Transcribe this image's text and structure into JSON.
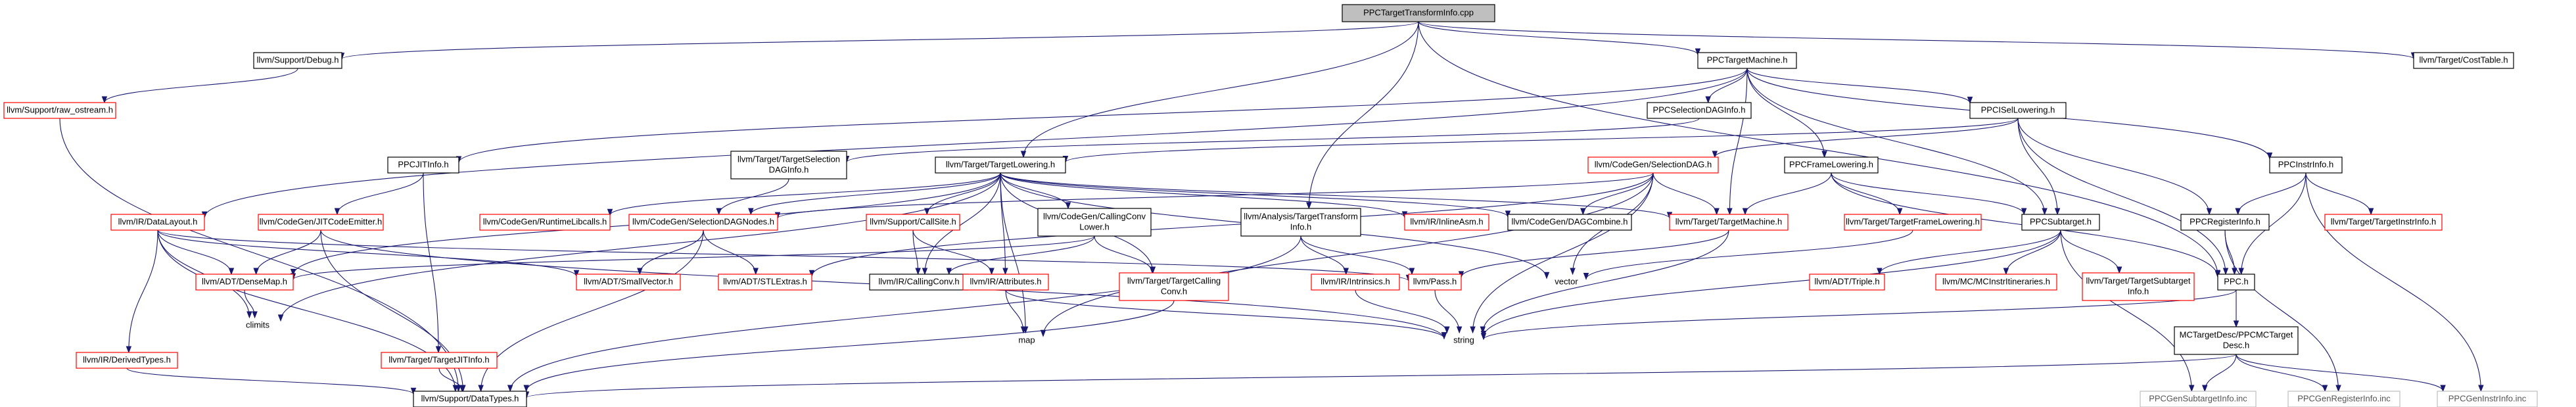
{
  "diagram": {
    "title": "PPCTargetTransformInfo.cpp include dependency graph",
    "colors": {
      "edge": "#191970",
      "missing_border": "#ff0000",
      "root_fill": "#bfbfbf",
      "external_border": "#bfbfbf"
    },
    "nodes": [
      {
        "id": "root",
        "label": [
          "PPCTargetTransformInfo.cpp"
        ],
        "kind": "root"
      },
      {
        "id": "debug",
        "label": [
          "llvm/Support/Debug.h"
        ],
        "kind": "normal"
      },
      {
        "id": "raw_ostream",
        "label": [
          "llvm/Support/raw_ostream.h"
        ],
        "kind": "missing"
      },
      {
        "id": "ppc_target_machine",
        "label": [
          "PPCTargetMachine.h"
        ],
        "kind": "normal"
      },
      {
        "id": "cost_table",
        "label": [
          "llvm/Target/CostTable.h"
        ],
        "kind": "normal"
      },
      {
        "id": "ir_datalayout",
        "label": [
          "llvm/IR/DataLayout.h"
        ],
        "kind": "missing"
      },
      {
        "id": "selection_dag_info",
        "label": [
          "PPCSelectionDAGInfo.h"
        ],
        "kind": "normal"
      },
      {
        "id": "isel_lowering",
        "label": [
          "PPCISelLowering.h"
        ],
        "kind": "normal"
      },
      {
        "id": "instr_info",
        "label": [
          "PPCInstrInfo.h"
        ],
        "kind": "normal"
      },
      {
        "id": "jit_info",
        "label": [
          "PPCJITInfo.h"
        ],
        "kind": "normal"
      },
      {
        "id": "target_selection_dag_info",
        "label": [
          "llvm/Target/TargetSelection",
          "DAGInfo.h"
        ],
        "kind": "normal"
      },
      {
        "id": "target_lowering",
        "label": [
          "llvm/Target/TargetLowering.h"
        ],
        "kind": "normal"
      },
      {
        "id": "codegen_selection_dag",
        "label": [
          "llvm/CodeGen/SelectionDAG.h"
        ],
        "kind": "missing"
      },
      {
        "id": "frame_lowering",
        "label": [
          "PPCFrameLowering.h"
        ],
        "kind": "normal"
      },
      {
        "id": "jit_code_emitter",
        "label": [
          "llvm/CodeGen/JITCodeEmitter.h"
        ],
        "kind": "missing"
      },
      {
        "id": "runtime_libcalls",
        "label": [
          "llvm/CodeGen/RuntimeLibcalls.h"
        ],
        "kind": "missing"
      },
      {
        "id": "selection_dag_nodes",
        "label": [
          "llvm/CodeGen/SelectionDAGNodes.h"
        ],
        "kind": "missing"
      },
      {
        "id": "call_site",
        "label": [
          "llvm/Support/CallSite.h"
        ],
        "kind": "missing"
      },
      {
        "id": "calling_conv_lower",
        "label": [
          "llvm/CodeGen/CallingConv",
          "Lower.h"
        ],
        "kind": "normal"
      },
      {
        "id": "analysis_tti",
        "label": [
          "llvm/Analysis/TargetTransform",
          "Info.h"
        ],
        "kind": "normal"
      },
      {
        "id": "inline_asm",
        "label": [
          "llvm/IR/InlineAsm.h"
        ],
        "kind": "missing"
      },
      {
        "id": "dag_combine",
        "label": [
          "llvm/CodeGen/DAGCombine.h"
        ],
        "kind": "normal"
      },
      {
        "id": "target_target_machine",
        "label": [
          "llvm/Target/TargetMachine.h"
        ],
        "kind": "missing"
      },
      {
        "id": "target_frame_lowering",
        "label": [
          "llvm/Target/TargetFrameLowering.h"
        ],
        "kind": "missing"
      },
      {
        "id": "ppc_subtarget",
        "label": [
          "PPCSubtarget.h"
        ],
        "kind": "normal"
      },
      {
        "id": "register_info",
        "label": [
          "PPCRegisterInfo.h"
        ],
        "kind": "normal"
      },
      {
        "id": "target_instr_info",
        "label": [
          "llvm/Target/TargetInstrInfo.h"
        ],
        "kind": "missing"
      },
      {
        "id": "dense_map",
        "label": [
          "llvm/ADT/DenseMap.h"
        ],
        "kind": "missing"
      },
      {
        "id": "small_vector",
        "label": [
          "llvm/ADT/SmallVector.h"
        ],
        "kind": "missing"
      },
      {
        "id": "stl_extras",
        "label": [
          "llvm/ADT/STLExtras.h"
        ],
        "kind": "missing"
      },
      {
        "id": "ir_calling_conv",
        "label": [
          "llvm/IR/CallingConv.h"
        ],
        "kind": "normal"
      },
      {
        "id": "target_calling_conv",
        "label": [
          "llvm/Target/TargetCalling",
          "Conv.h"
        ],
        "kind": "missing"
      },
      {
        "id": "ir_attributes",
        "label": [
          "llvm/IR/Attributes.h"
        ],
        "kind": "missing"
      },
      {
        "id": "ir_intrinsics",
        "label": [
          "llvm/IR/Intrinsics.h"
        ],
        "kind": "missing"
      },
      {
        "id": "pass",
        "label": [
          "llvm/Pass.h"
        ],
        "kind": "missing"
      },
      {
        "id": "vector",
        "label": [
          "vector"
        ],
        "kind": "plain"
      },
      {
        "id": "adt_triple",
        "label": [
          "llvm/ADT/Triple.h"
        ],
        "kind": "missing"
      },
      {
        "id": "mc_instr_itineraries",
        "label": [
          "llvm/MC/MCInstrItineraries.h"
        ],
        "kind": "missing"
      },
      {
        "id": "target_subtarget_info",
        "label": [
          "llvm/Target/TargetSubtarget",
          "Info.h"
        ],
        "kind": "missing"
      },
      {
        "id": "ppc_h",
        "label": [
          "PPC.h"
        ],
        "kind": "normal"
      },
      {
        "id": "climits",
        "label": [
          "climits"
        ],
        "kind": "plain"
      },
      {
        "id": "derived_types",
        "label": [
          "llvm/IR/DerivedTypes.h"
        ],
        "kind": "missing"
      },
      {
        "id": "target_jit_info",
        "label": [
          "llvm/Target/TargetJITInfo.h"
        ],
        "kind": "missing"
      },
      {
        "id": "map",
        "label": [
          "map"
        ],
        "kind": "plain"
      },
      {
        "id": "string",
        "label": [
          "string"
        ],
        "kind": "plain"
      },
      {
        "id": "mc_target_desc",
        "label": [
          "MCTargetDesc/PPCMCTarget",
          "Desc.h"
        ],
        "kind": "normal"
      },
      {
        "id": "data_types",
        "label": [
          "llvm/Support/DataTypes.h"
        ],
        "kind": "normal"
      },
      {
        "id": "gen_subtarget_info",
        "label": [
          "PPCGenSubtargetInfo.inc"
        ],
        "kind": "external"
      },
      {
        "id": "gen_register_info",
        "label": [
          "PPCGenRegisterInfo.inc"
        ],
        "kind": "external"
      },
      {
        "id": "gen_instr_info",
        "label": [
          "PPCGenInstrInfo.inc"
        ],
        "kind": "external"
      }
    ],
    "edges": [
      [
        "root",
        "debug"
      ],
      [
        "root",
        "ppc_target_machine"
      ],
      [
        "root",
        "cost_table"
      ],
      [
        "root",
        "target_lowering"
      ],
      [
        "root",
        "analysis_tti"
      ],
      [
        "root",
        "ppc_h"
      ],
      [
        "debug",
        "raw_ostream"
      ],
      [
        "raw_ostream",
        "data_types"
      ],
      [
        "ppc_target_machine",
        "ir_datalayout"
      ],
      [
        "ppc_target_machine",
        "selection_dag_info"
      ],
      [
        "ppc_target_machine",
        "isel_lowering"
      ],
      [
        "ppc_target_machine",
        "instr_info"
      ],
      [
        "ppc_target_machine",
        "jit_info"
      ],
      [
        "ppc_target_machine",
        "frame_lowering"
      ],
      [
        "ppc_target_machine",
        "target_target_machine"
      ],
      [
        "ppc_target_machine",
        "ppc_subtarget"
      ],
      [
        "selection_dag_info",
        "target_selection_dag_info"
      ],
      [
        "isel_lowering",
        "target_lowering"
      ],
      [
        "isel_lowering",
        "codegen_selection_dag"
      ],
      [
        "isel_lowering",
        "ppc_subtarget"
      ],
      [
        "isel_lowering",
        "register_info"
      ],
      [
        "isel_lowering",
        "ppc_h"
      ],
      [
        "instr_info",
        "register_info"
      ],
      [
        "instr_info",
        "target_instr_info"
      ],
      [
        "instr_info",
        "ppc_h"
      ],
      [
        "instr_info",
        "gen_instr_info"
      ],
      [
        "jit_info",
        "jit_code_emitter"
      ],
      [
        "jit_info",
        "target_jit_info"
      ],
      [
        "target_selection_dag_info",
        "selection_dag_nodes"
      ],
      [
        "target_lowering",
        "runtime_libcalls"
      ],
      [
        "target_lowering",
        "selection_dag_nodes"
      ],
      [
        "target_lowering",
        "call_site"
      ],
      [
        "target_lowering",
        "calling_conv_lower"
      ],
      [
        "target_lowering",
        "inline_asm"
      ],
      [
        "target_lowering",
        "dag_combine"
      ],
      [
        "target_lowering",
        "target_target_machine"
      ],
      [
        "target_lowering",
        "dense_map"
      ],
      [
        "target_lowering",
        "ir_calling_conv"
      ],
      [
        "target_lowering",
        "ir_attributes"
      ],
      [
        "target_lowering",
        "target_calling_conv"
      ],
      [
        "target_lowering",
        "climits"
      ],
      [
        "target_lowering",
        "map"
      ],
      [
        "target_lowering",
        "vector"
      ],
      [
        "codegen_selection_dag",
        "selection_dag_nodes"
      ],
      [
        "codegen_selection_dag",
        "dag_combine"
      ],
      [
        "codegen_selection_dag",
        "target_target_machine"
      ],
      [
        "codegen_selection_dag",
        "vector"
      ],
      [
        "codegen_selection_dag",
        "stl_extras"
      ],
      [
        "codegen_selection_dag",
        "map"
      ],
      [
        "codegen_selection_dag",
        "string"
      ],
      [
        "frame_lowering",
        "target_frame_lowering"
      ],
      [
        "frame_lowering",
        "target_target_machine"
      ],
      [
        "frame_lowering",
        "ppc_subtarget"
      ],
      [
        "frame_lowering",
        "ppc_h"
      ],
      [
        "jit_code_emitter",
        "dense_map"
      ],
      [
        "jit_code_emitter",
        "data_types"
      ],
      [
        "jit_code_emitter",
        "string"
      ],
      [
        "selection_dag_nodes",
        "small_vector"
      ],
      [
        "selection_dag_nodes",
        "stl_extras"
      ],
      [
        "selection_dag_nodes",
        "data_types"
      ],
      [
        "call_site",
        "ir_calling_conv"
      ],
      [
        "call_site",
        "ir_attributes"
      ],
      [
        "calling_conv_lower",
        "ir_calling_conv"
      ],
      [
        "calling_conv_lower",
        "target_calling_conv"
      ],
      [
        "calling_conv_lower",
        "dense_map"
      ],
      [
        "analysis_tti",
        "pass"
      ],
      [
        "analysis_tti",
        "ir_intrinsics"
      ],
      [
        "analysis_tti",
        "data_types"
      ],
      [
        "target_target_machine",
        "pass"
      ],
      [
        "target_target_machine",
        "string"
      ],
      [
        "target_frame_lowering",
        "vector"
      ],
      [
        "ppc_subtarget",
        "adt_triple"
      ],
      [
        "ppc_subtarget",
        "mc_instr_itineraries"
      ],
      [
        "ppc_subtarget",
        "target_subtarget_info"
      ],
      [
        "ppc_subtarget",
        "gen_subtarget_info"
      ],
      [
        "ppc_subtarget",
        "string"
      ],
      [
        "register_info",
        "ppc_h"
      ],
      [
        "register_info",
        "gen_register_info"
      ],
      [
        "ir_datalayout",
        "dense_map"
      ],
      [
        "ir_datalayout",
        "small_vector"
      ],
      [
        "ir_datalayout",
        "derived_types"
      ],
      [
        "ir_datalayout",
        "climits"
      ],
      [
        "ir_datalayout",
        "data_types"
      ],
      [
        "ir_datalayout",
        "pass"
      ],
      [
        "dense_map",
        "climits"
      ],
      [
        "ir_attributes",
        "map"
      ],
      [
        "ir_attributes",
        "string"
      ],
      [
        "ir_intrinsics",
        "string"
      ],
      [
        "pass",
        "string"
      ],
      [
        "target_calling_conv",
        "data_types"
      ],
      [
        "derived_types",
        "data_types"
      ],
      [
        "target_jit_info",
        "data_types"
      ],
      [
        "ppc_h",
        "mc_target_desc"
      ],
      [
        "ppc_h",
        "string"
      ],
      [
        "mc_target_desc",
        "data_types"
      ],
      [
        "mc_target_desc",
        "gen_subtarget_info"
      ],
      [
        "mc_target_desc",
        "gen_register_info"
      ],
      [
        "mc_target_desc",
        "gen_instr_info"
      ]
    ]
  }
}
